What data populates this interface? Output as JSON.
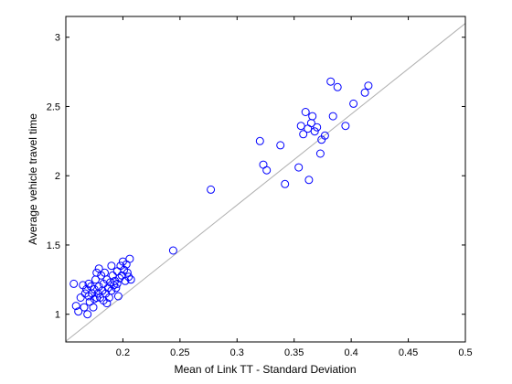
{
  "chart_data": {
    "type": "scatter",
    "title": "",
    "xlabel": "Mean of Link TT - Standard Deviation",
    "ylabel": "Average vehicle travel time",
    "xlim": [
      0.15,
      0.5
    ],
    "ylim": [
      0.8,
      3.15
    ],
    "xticks": [
      "0.2",
      "0.25",
      "0.3",
      "0.35",
      "0.4",
      "0.45",
      "0.5"
    ],
    "yticks": [
      "1",
      "1.5",
      "2",
      "2.5",
      "3"
    ],
    "grid": false,
    "marker_color": "#0000ff",
    "fit_line_color": "#b0b0b0",
    "fit_line": {
      "x": [
        0.15,
        0.5
      ],
      "y": [
        0.805,
        3.1
      ]
    },
    "points": [
      [
        0.157,
        1.22
      ],
      [
        0.159,
        1.06
      ],
      [
        0.161,
        1.02
      ],
      [
        0.163,
        1.12
      ],
      [
        0.165,
        1.21
      ],
      [
        0.166,
        1.05
      ],
      [
        0.167,
        1.15
      ],
      [
        0.168,
        1.18
      ],
      [
        0.169,
        1.0
      ],
      [
        0.17,
        1.22
      ],
      [
        0.17,
        1.13
      ],
      [
        0.171,
        1.09
      ],
      [
        0.172,
        1.2
      ],
      [
        0.173,
        1.15
      ],
      [
        0.174,
        1.05
      ],
      [
        0.175,
        1.18
      ],
      [
        0.175,
        1.11
      ],
      [
        0.176,
        1.25
      ],
      [
        0.177,
        1.12
      ],
      [
        0.177,
        1.3
      ],
      [
        0.178,
        1.15
      ],
      [
        0.179,
        1.33
      ],
      [
        0.179,
        1.2
      ],
      [
        0.18,
        1.12
      ],
      [
        0.181,
        1.28
      ],
      [
        0.182,
        1.17
      ],
      [
        0.183,
        1.1
      ],
      [
        0.183,
        1.22
      ],
      [
        0.184,
        1.3
      ],
      [
        0.185,
        1.15
      ],
      [
        0.186,
        1.08
      ],
      [
        0.186,
        1.25
      ],
      [
        0.187,
        1.19
      ],
      [
        0.188,
        1.12
      ],
      [
        0.189,
        1.23
      ],
      [
        0.19,
        1.35
      ],
      [
        0.19,
        1.17
      ],
      [
        0.191,
        1.28
      ],
      [
        0.192,
        1.21
      ],
      [
        0.193,
        1.24
      ],
      [
        0.194,
        1.19
      ],
      [
        0.195,
        1.31
      ],
      [
        0.195,
        1.22
      ],
      [
        0.196,
        1.13
      ],
      [
        0.197,
        1.26
      ],
      [
        0.198,
        1.35
      ],
      [
        0.199,
        1.28
      ],
      [
        0.2,
        1.38
      ],
      [
        0.201,
        1.32
      ],
      [
        0.202,
        1.24
      ],
      [
        0.203,
        1.36
      ],
      [
        0.204,
        1.3
      ],
      [
        0.205,
        1.27
      ],
      [
        0.206,
        1.4
      ],
      [
        0.207,
        1.25
      ],
      [
        0.244,
        1.46
      ],
      [
        0.277,
        1.9
      ],
      [
        0.32,
        2.25
      ],
      [
        0.323,
        2.08
      ],
      [
        0.326,
        2.04
      ],
      [
        0.338,
        2.22
      ],
      [
        0.342,
        1.94
      ],
      [
        0.354,
        2.06
      ],
      [
        0.356,
        2.36
      ],
      [
        0.358,
        2.3
      ],
      [
        0.36,
        2.46
      ],
      [
        0.362,
        2.34
      ],
      [
        0.363,
        1.97
      ],
      [
        0.365,
        2.38
      ],
      [
        0.366,
        2.43
      ],
      [
        0.368,
        2.32
      ],
      [
        0.37,
        2.35
      ],
      [
        0.373,
        2.16
      ],
      [
        0.374,
        2.26
      ],
      [
        0.377,
        2.29
      ],
      [
        0.382,
        2.68
      ],
      [
        0.384,
        2.43
      ],
      [
        0.388,
        2.64
      ],
      [
        0.395,
        2.36
      ],
      [
        0.402,
        2.52
      ],
      [
        0.412,
        2.6
      ],
      [
        0.415,
        2.65
      ]
    ]
  }
}
